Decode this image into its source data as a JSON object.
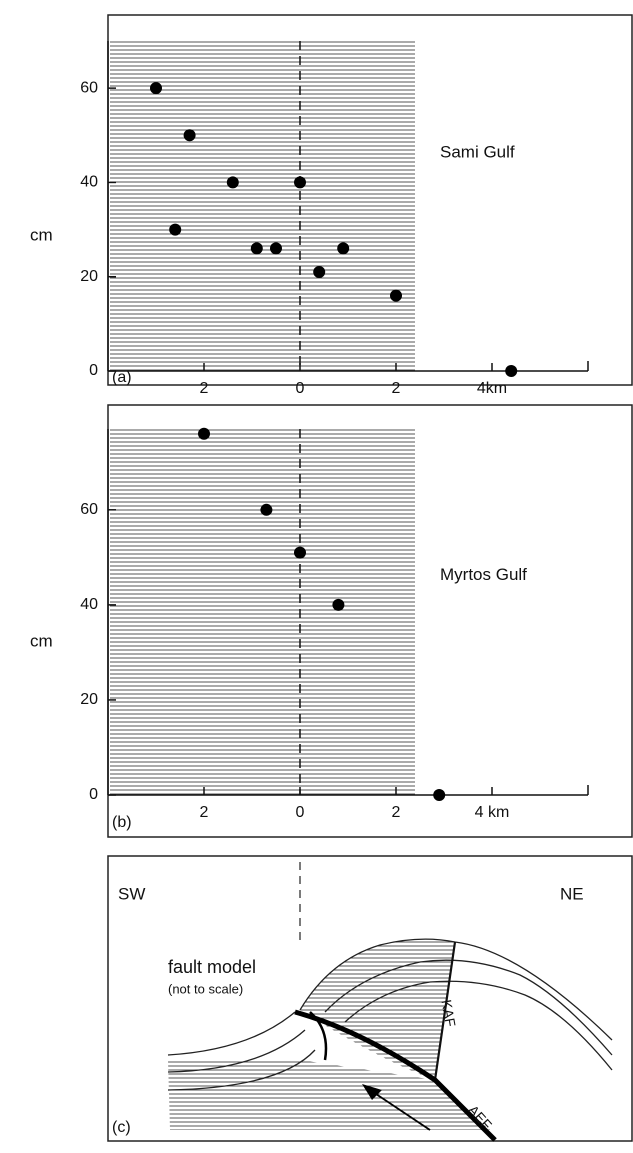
{
  "chart_data": [
    {
      "type": "scatter",
      "title": "Sami Gulf",
      "panel": "(a)",
      "y_label": "cm",
      "x": [
        -3,
        -2.3,
        -1.4,
        -2.6,
        -0.9,
        -0.5,
        0,
        0.4,
        0.9,
        2,
        4.4
      ],
      "values": [
        60,
        50,
        40,
        30,
        26,
        26,
        40,
        21,
        26,
        16,
        0
      ],
      "color": "#000000",
      "xlim": [
        -4,
        6
      ],
      "xticks": [
        {
          "value": -2,
          "label": "2"
        },
        0,
        2,
        {
          "value": 4,
          "label": "4km"
        }
      ],
      "ylim": [
        0,
        70
      ],
      "yticks": [
        0,
        20,
        40,
        60
      ]
    },
    {
      "type": "scatter",
      "title": "Myrtos Gulf",
      "panel": "(b)",
      "y_label": "cm",
      "x": [
        -2,
        -0.7,
        0,
        0.8,
        2.9
      ],
      "values": [
        76,
        60,
        51,
        40,
        0
      ],
      "color": "#000000",
      "xlim": [
        -4,
        6
      ],
      "xticks": [
        {
          "value": -2,
          "label": "2"
        },
        0,
        2,
        {
          "value": 4,
          "label": "4 km"
        }
      ],
      "ylim": [
        0,
        77
      ],
      "yticks": [
        0,
        20,
        40,
        60
      ]
    }
  ],
  "diagram": {
    "panel": "(c)",
    "left": "SW",
    "right": "NE",
    "title": "fault model",
    "subtitle": "(not to scale)",
    "faults": [
      "KAF",
      "AEF"
    ]
  }
}
